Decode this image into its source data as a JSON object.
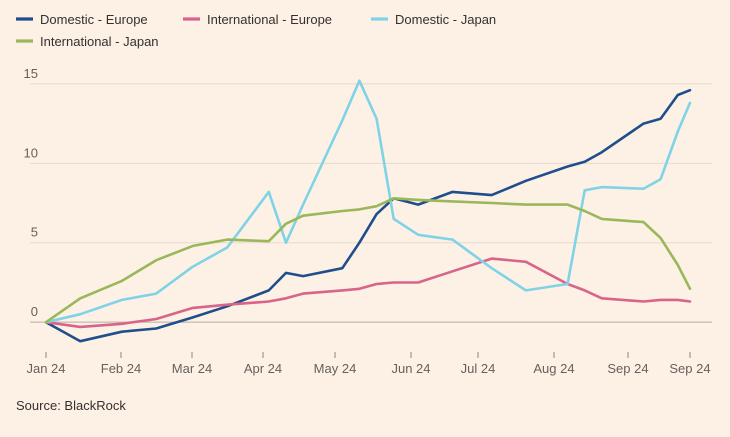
{
  "colors": {
    "background": "#fdf1e6",
    "grid": "#e6d9ce",
    "zero_line": "#b8aca3",
    "domestic_europe": "#1f4e8c",
    "international_europe": "#d8648a",
    "domestic_japan": "#80d3e6",
    "international_japan": "#9ab85a"
  },
  "source": "Source: BlackRock",
  "chart_data": {
    "type": "line",
    "title": "",
    "xlabel": "",
    "ylabel": "",
    "x_ticks": [
      "Jan 24",
      "Feb 24",
      "Mar 24",
      "Apr 24",
      "May 24",
      "Jun 24",
      "Jul 24",
      "Aug 24",
      "Sep 24",
      "Sep 24"
    ],
    "y_ticks": [
      0,
      5,
      10,
      15
    ],
    "ylim": [
      -1.5,
      16
    ],
    "grid": true,
    "legend_position": "top-left",
    "x": [
      "2024-01-01",
      "2024-01-15",
      "2024-02-01",
      "2024-02-15",
      "2024-03-01",
      "2024-03-15",
      "2024-04-01",
      "2024-04-08",
      "2024-04-15",
      "2024-05-01",
      "2024-05-08",
      "2024-05-15",
      "2024-05-22",
      "2024-06-01",
      "2024-06-15",
      "2024-07-01",
      "2024-07-15",
      "2024-08-01",
      "2024-08-08",
      "2024-08-15",
      "2024-09-01",
      "2024-09-08",
      "2024-09-15",
      "2024-09-20"
    ],
    "series": [
      {
        "name": "Domestic - Europe",
        "color_key": "domestic_europe",
        "values": [
          0,
          -1.2,
          -0.6,
          -0.4,
          0.3,
          1.0,
          2.0,
          3.1,
          2.9,
          3.4,
          5.0,
          6.8,
          7.8,
          7.4,
          8.2,
          8.0,
          8.9,
          9.8,
          10.1,
          10.7,
          12.5,
          12.8,
          14.3,
          14.6
        ]
      },
      {
        "name": "International - Europe",
        "color_key": "international_europe",
        "values": [
          0,
          -0.3,
          -0.1,
          0.2,
          0.9,
          1.1,
          1.3,
          1.5,
          1.8,
          2.0,
          2.1,
          2.4,
          2.5,
          2.5,
          3.2,
          4.0,
          3.8,
          2.4,
          2.0,
          1.5,
          1.3,
          1.4,
          1.4,
          1.3
        ]
      },
      {
        "name": "Domestic - Japan",
        "color_key": "domestic_japan",
        "values": [
          0,
          0.5,
          1.4,
          1.8,
          3.5,
          4.7,
          8.2,
          5.0,
          7.4,
          12.7,
          15.2,
          12.8,
          6.5,
          5.5,
          5.2,
          3.4,
          2.0,
          2.4,
          8.3,
          8.5,
          8.4,
          9.0,
          12.0,
          13.8
        ]
      },
      {
        "name": "International - Japan",
        "color_key": "international_japan",
        "values": [
          0,
          1.5,
          2.6,
          3.9,
          4.8,
          5.2,
          5.1,
          6.2,
          6.7,
          7.0,
          7.1,
          7.3,
          7.8,
          7.7,
          7.6,
          7.5,
          7.4,
          7.4,
          7.0,
          6.5,
          6.3,
          5.3,
          3.6,
          2.1
        ]
      }
    ]
  }
}
